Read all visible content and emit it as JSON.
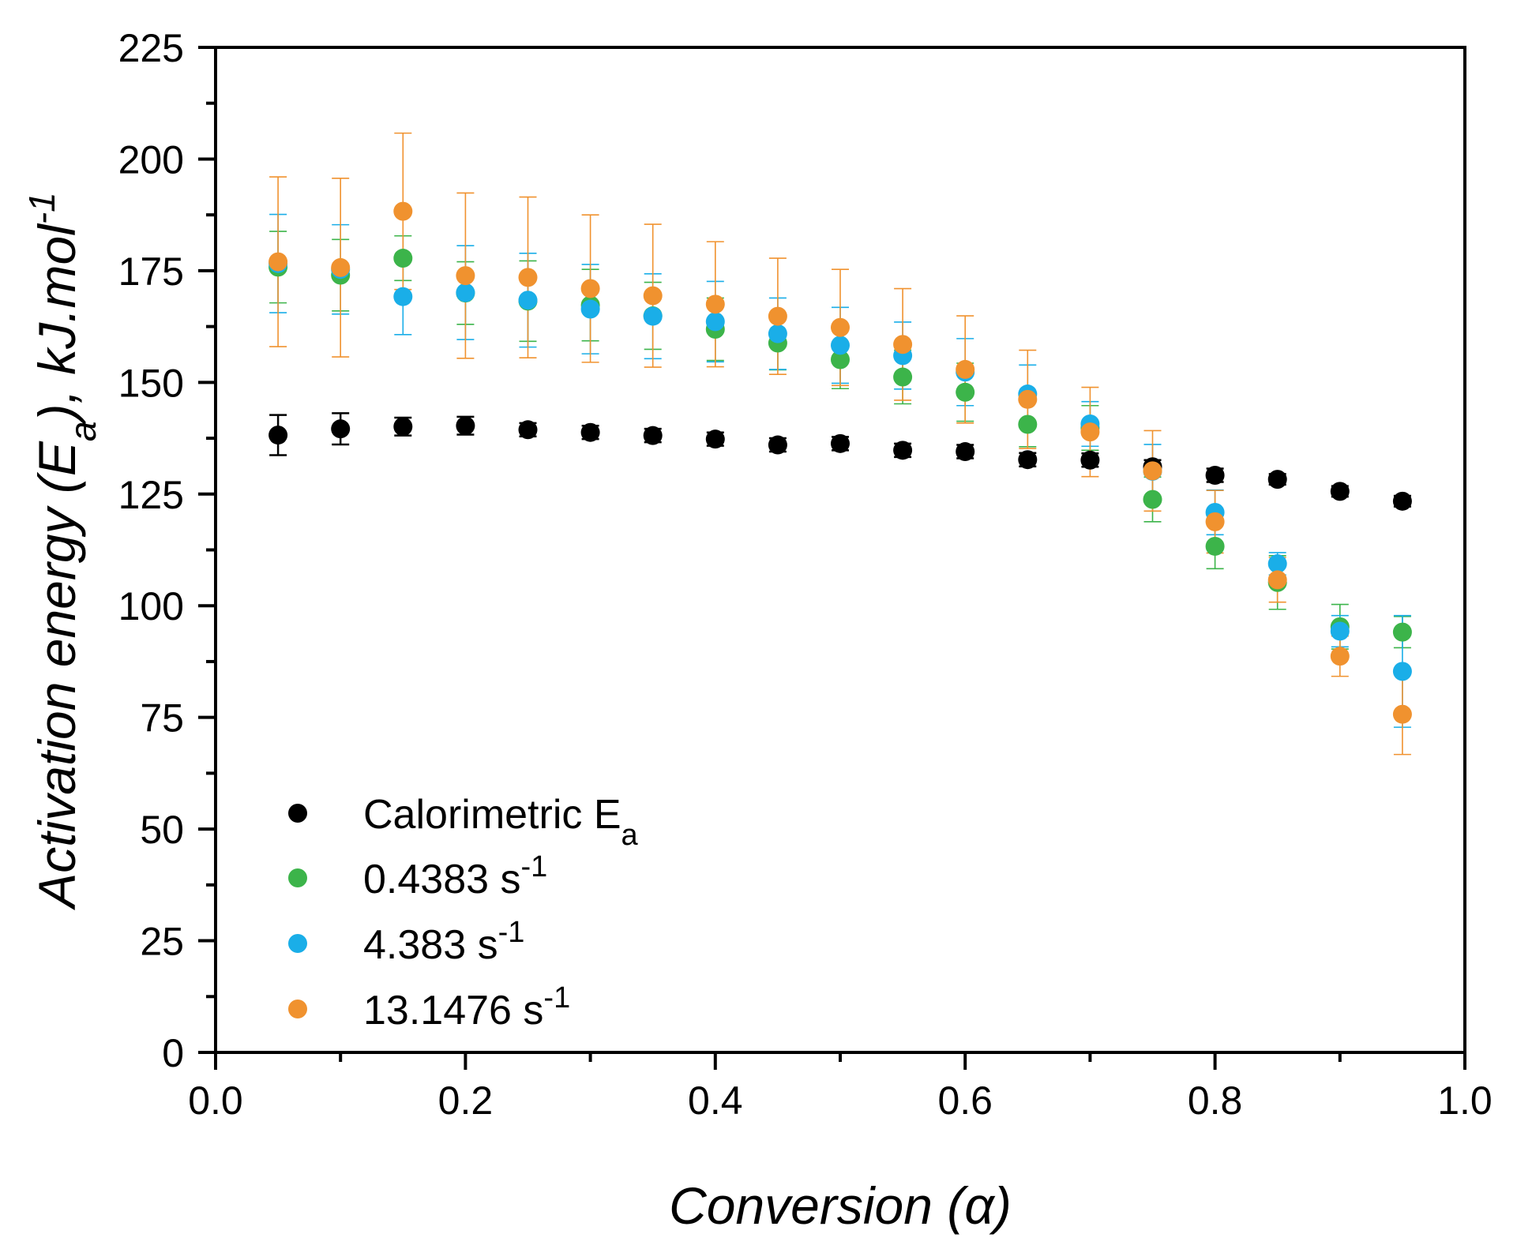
{
  "chart_data": {
    "type": "scatter",
    "title": "",
    "xlabel": "Conversion (α)",
    "ylabel": {
      "main": "Activation energy (E",
      "sub": "a",
      "unit": "), kJ.mol",
      "sup": "-1"
    },
    "xlim": [
      0.0,
      1.0
    ],
    "ylim": [
      0,
      225
    ],
    "x_ticks": [
      "0.0",
      "0.2",
      "0.4",
      "0.6",
      "0.8",
      "1.0"
    ],
    "y_ticks": [
      "0",
      "25",
      "50",
      "75",
      "100",
      "125",
      "150",
      "175",
      "200",
      "225"
    ],
    "grid": false,
    "legend_position": "bottom-left",
    "x": [
      0.05,
      0.1,
      0.15,
      0.2,
      0.25,
      0.3,
      0.35,
      0.4,
      0.45,
      0.5,
      0.55,
      0.6,
      0.65,
      0.7,
      0.75,
      0.8,
      0.85,
      0.9,
      0.95
    ],
    "series": [
      {
        "name": "Calorimetric E",
        "name_sub": "a",
        "name_sup": "",
        "color": "#000000",
        "values": [
          138.2,
          139.6,
          140.1,
          140.3,
          139.4,
          138.8,
          138.1,
          137.3,
          136.0,
          136.3,
          134.8,
          134.5,
          132.7,
          132.6,
          131.1,
          129.2,
          128.3,
          125.6,
          123.4
        ],
        "errors": [
          4.5,
          3.5,
          2.0,
          2.0,
          1.5,
          1.5,
          1.5,
          1.5,
          1.5,
          1.5,
          1.5,
          1.5,
          1.5,
          1.5,
          1.5,
          1.5,
          1.2,
          1.2,
          1.2
        ]
      },
      {
        "name": "0.4383 s",
        "name_sub": "",
        "name_sup": "-1",
        "color": "#3cb44a",
        "values": [
          175.8,
          174.0,
          177.8,
          170.0,
          168.2,
          167.3,
          164.9,
          161.9,
          158.8,
          155.1,
          151.2,
          147.8,
          140.6,
          139.8,
          123.8,
          113.3,
          105.2,
          95.3,
          94.1
        ],
        "errors": [
          8.0,
          8.0,
          5.0,
          7.0,
          9.0,
          8.0,
          7.5,
          7.0,
          6.0,
          6.5,
          6.0,
          6.5,
          5.0,
          5.0,
          5.0,
          5.0,
          6.0,
          5.0,
          3.5
        ]
      },
      {
        "name": "4.383 s",
        "name_sub": "",
        "name_sup": "-1",
        "color": "#1aaee8",
        "values": [
          176.6,
          175.3,
          169.2,
          170.1,
          168.4,
          166.4,
          164.8,
          163.6,
          160.9,
          158.3,
          156.0,
          152.3,
          147.4,
          140.7,
          130.1,
          120.9,
          109.4,
          94.3,
          85.3
        ],
        "errors": [
          11.0,
          10.0,
          8.5,
          10.5,
          10.5,
          10.0,
          9.5,
          9.0,
          8.0,
          8.5,
          7.5,
          7.5,
          6.5,
          5.0,
          6.0,
          5.0,
          2.5,
          3.5,
          12.5
        ]
      },
      {
        "name": "13.1476 s",
        "name_sub": "",
        "name_sup": "-1",
        "color": "#f0922f",
        "values": [
          177.0,
          175.7,
          188.3,
          173.9,
          173.5,
          171.0,
          169.4,
          167.5,
          164.8,
          162.3,
          158.5,
          152.9,
          146.2,
          138.9,
          130.2,
          118.8,
          105.8,
          88.7,
          75.7
        ],
        "errors": [
          19.0,
          20.0,
          17.5,
          18.5,
          18.0,
          16.5,
          16.0,
          14.0,
          13.0,
          13.0,
          12.5,
          12.0,
          11.0,
          10.0,
          9.0,
          7.0,
          5.0,
          4.5,
          9.0
        ]
      }
    ]
  }
}
